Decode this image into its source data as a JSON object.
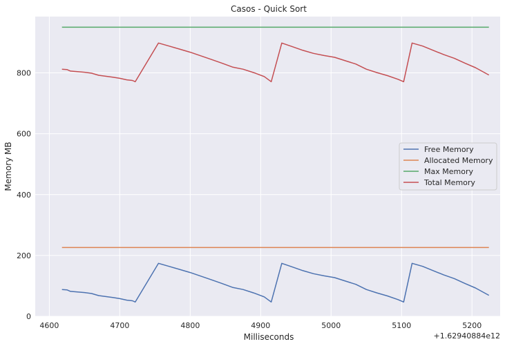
{
  "chart_data": {
    "type": "line",
    "title": "Casos - Quick Sort",
    "xlabel": "Milliseconds",
    "ylabel": "Memory MB",
    "x_offset_label": "+1.62940884e12",
    "xlim": [
      4580,
      5240
    ],
    "ylim": [
      0,
      985
    ],
    "xticks": [
      4600,
      4700,
      4800,
      4900,
      5000,
      5100,
      5200
    ],
    "yticks": [
      0,
      200,
      400,
      600,
      800
    ],
    "grid": true,
    "legend_position": "center-right",
    "series": [
      {
        "name": "Free Memory",
        "color": "#4c72b0",
        "x": [
          4618,
          4625,
          4630,
          4640,
          4650,
          4660,
          4670,
          4680,
          4690,
          4700,
          4710,
          4718,
          4722,
          4755,
          4770,
          4785,
          4800,
          4815,
          4830,
          4845,
          4860,
          4875,
          4890,
          4905,
          4915,
          4930,
          4945,
          4960,
          4975,
          4990,
          5005,
          5020,
          5035,
          5050,
          5065,
          5080,
          5095,
          5103,
          5115,
          5130,
          5145,
          5160,
          5175,
          5190,
          5205,
          5224
        ],
        "y": [
          88,
          87,
          82,
          80,
          78,
          75,
          68,
          65,
          62,
          58,
          53,
          51,
          47,
          174,
          164,
          154,
          144,
          132,
          120,
          108,
          95,
          88,
          77,
          64,
          47,
          174,
          162,
          150,
          140,
          133,
          127,
          116,
          105,
          88,
          77,
          67,
          55,
          47,
          174,
          164,
          150,
          136,
          124,
          108,
          93,
          69
        ]
      },
      {
        "name": "Allocated Memory",
        "color": "#dd8452",
        "x": [
          4618,
          5224
        ],
        "y": [
          226,
          226
        ]
      },
      {
        "name": "Max Memory",
        "color": "#55a868",
        "x": [
          4618,
          5224
        ],
        "y": [
          950,
          950
        ]
      },
      {
        "name": "Total Memory",
        "color": "#c44e52",
        "x": [
          4618,
          4625,
          4630,
          4640,
          4650,
          4660,
          4670,
          4680,
          4690,
          4700,
          4710,
          4718,
          4722,
          4755,
          4770,
          4785,
          4800,
          4815,
          4830,
          4845,
          4860,
          4875,
          4890,
          4905,
          4915,
          4930,
          4945,
          4960,
          4975,
          4990,
          5005,
          5020,
          5035,
          5050,
          5065,
          5080,
          5095,
          5103,
          5115,
          5130,
          5145,
          5160,
          5175,
          5190,
          5205,
          5224
        ],
        "y": [
          812,
          811,
          806,
          804,
          802,
          799,
          792,
          789,
          786,
          782,
          777,
          775,
          771,
          898,
          888,
          878,
          868,
          856,
          844,
          832,
          819,
          812,
          801,
          788,
          771,
          898,
          886,
          874,
          864,
          857,
          851,
          840,
          829,
          812,
          801,
          791,
          779,
          771,
          898,
          888,
          874,
          860,
          848,
          832,
          817,
          793
        ]
      }
    ]
  }
}
